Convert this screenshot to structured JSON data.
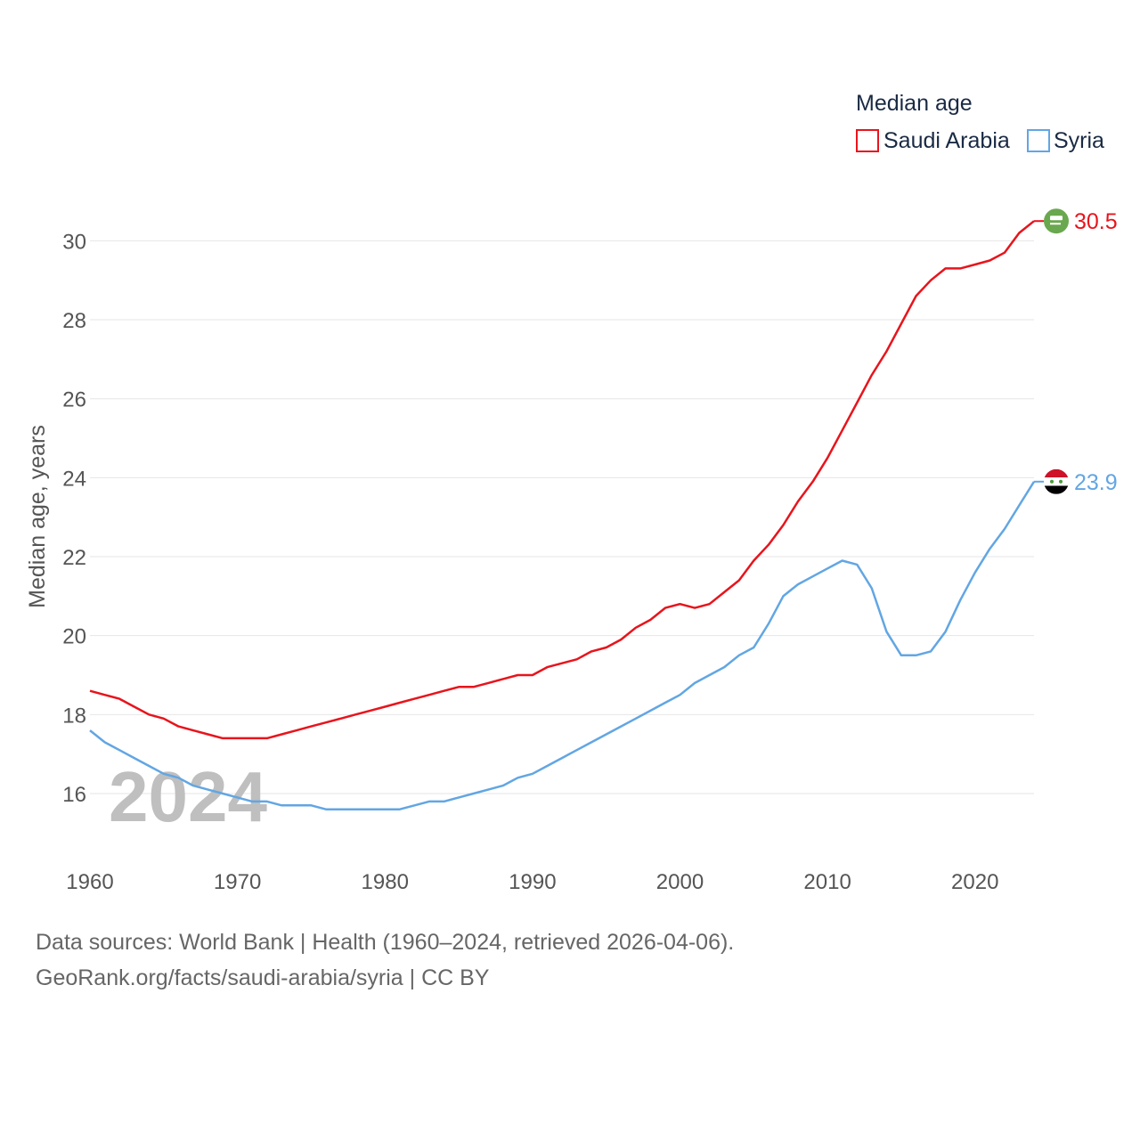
{
  "chart_data": {
    "type": "line",
    "title": "",
    "ylabel": "Median age, years",
    "xlabel": "",
    "xlim": [
      1960,
      2024
    ],
    "ylim": [
      15,
      31
    ],
    "yticks": [
      16,
      18,
      20,
      22,
      24,
      26,
      28,
      30
    ],
    "xticks": [
      1960,
      1970,
      1980,
      1990,
      2000,
      2010,
      2020
    ],
    "grid": true,
    "legend": {
      "title": "Median age",
      "position": "top-right"
    },
    "watermark_year": "2024",
    "x": [
      1960,
      1961,
      1962,
      1963,
      1964,
      1965,
      1966,
      1967,
      1968,
      1969,
      1970,
      1971,
      1972,
      1973,
      1974,
      1975,
      1976,
      1977,
      1978,
      1979,
      1980,
      1981,
      1982,
      1983,
      1984,
      1985,
      1986,
      1987,
      1988,
      1989,
      1990,
      1991,
      1992,
      1993,
      1994,
      1995,
      1996,
      1997,
      1998,
      1999,
      2000,
      2001,
      2002,
      2003,
      2004,
      2005,
      2006,
      2007,
      2008,
      2009,
      2010,
      2011,
      2012,
      2013,
      2014,
      2015,
      2016,
      2017,
      2018,
      2019,
      2020,
      2021,
      2022,
      2023,
      2024
    ],
    "series": [
      {
        "name": "Saudi Arabia",
        "color": "#e8141c",
        "end_label": "30.5",
        "flag": "saudi-arabia",
        "values": [
          18.6,
          18.5,
          18.4,
          18.2,
          18.0,
          17.9,
          17.7,
          17.6,
          17.5,
          17.4,
          17.4,
          17.4,
          17.4,
          17.5,
          17.6,
          17.7,
          17.8,
          17.9,
          18.0,
          18.1,
          18.2,
          18.3,
          18.4,
          18.5,
          18.6,
          18.7,
          18.7,
          18.8,
          18.9,
          19.0,
          19.0,
          19.2,
          19.3,
          19.4,
          19.6,
          19.7,
          19.9,
          20.2,
          20.4,
          20.7,
          20.8,
          20.7,
          20.8,
          21.1,
          21.4,
          21.9,
          22.3,
          22.8,
          23.4,
          23.9,
          24.5,
          25.2,
          25.9,
          26.6,
          27.2,
          27.9,
          28.6,
          29.0,
          29.3,
          29.3,
          29.4,
          29.5,
          29.7,
          30.2,
          30.5
        ]
      },
      {
        "name": "Syria",
        "color": "#62a6e3",
        "end_label": "23.9",
        "flag": "syria",
        "values": [
          17.6,
          17.3,
          17.1,
          16.9,
          16.7,
          16.5,
          16.4,
          16.2,
          16.1,
          16.0,
          15.9,
          15.8,
          15.8,
          15.7,
          15.7,
          15.7,
          15.6,
          15.6,
          15.6,
          15.6,
          15.6,
          15.6,
          15.7,
          15.8,
          15.8,
          15.9,
          16.0,
          16.1,
          16.2,
          16.4,
          16.5,
          16.7,
          16.9,
          17.1,
          17.3,
          17.5,
          17.7,
          17.9,
          18.1,
          18.3,
          18.5,
          18.8,
          19.0,
          19.2,
          19.5,
          19.7,
          20.3,
          21.0,
          21.3,
          21.5,
          21.7,
          21.9,
          21.8,
          21.2,
          20.1,
          19.5,
          19.5,
          19.6,
          20.1,
          20.9,
          21.6,
          22.2,
          22.7,
          23.3,
          23.9
        ]
      }
    ]
  },
  "footer": {
    "source_line": "Data sources: World Bank | Health (1960–2024, retrieved 2026-04-06).",
    "license_line": "GeoRank.org/facts/saudi-arabia/syria | CC BY"
  }
}
